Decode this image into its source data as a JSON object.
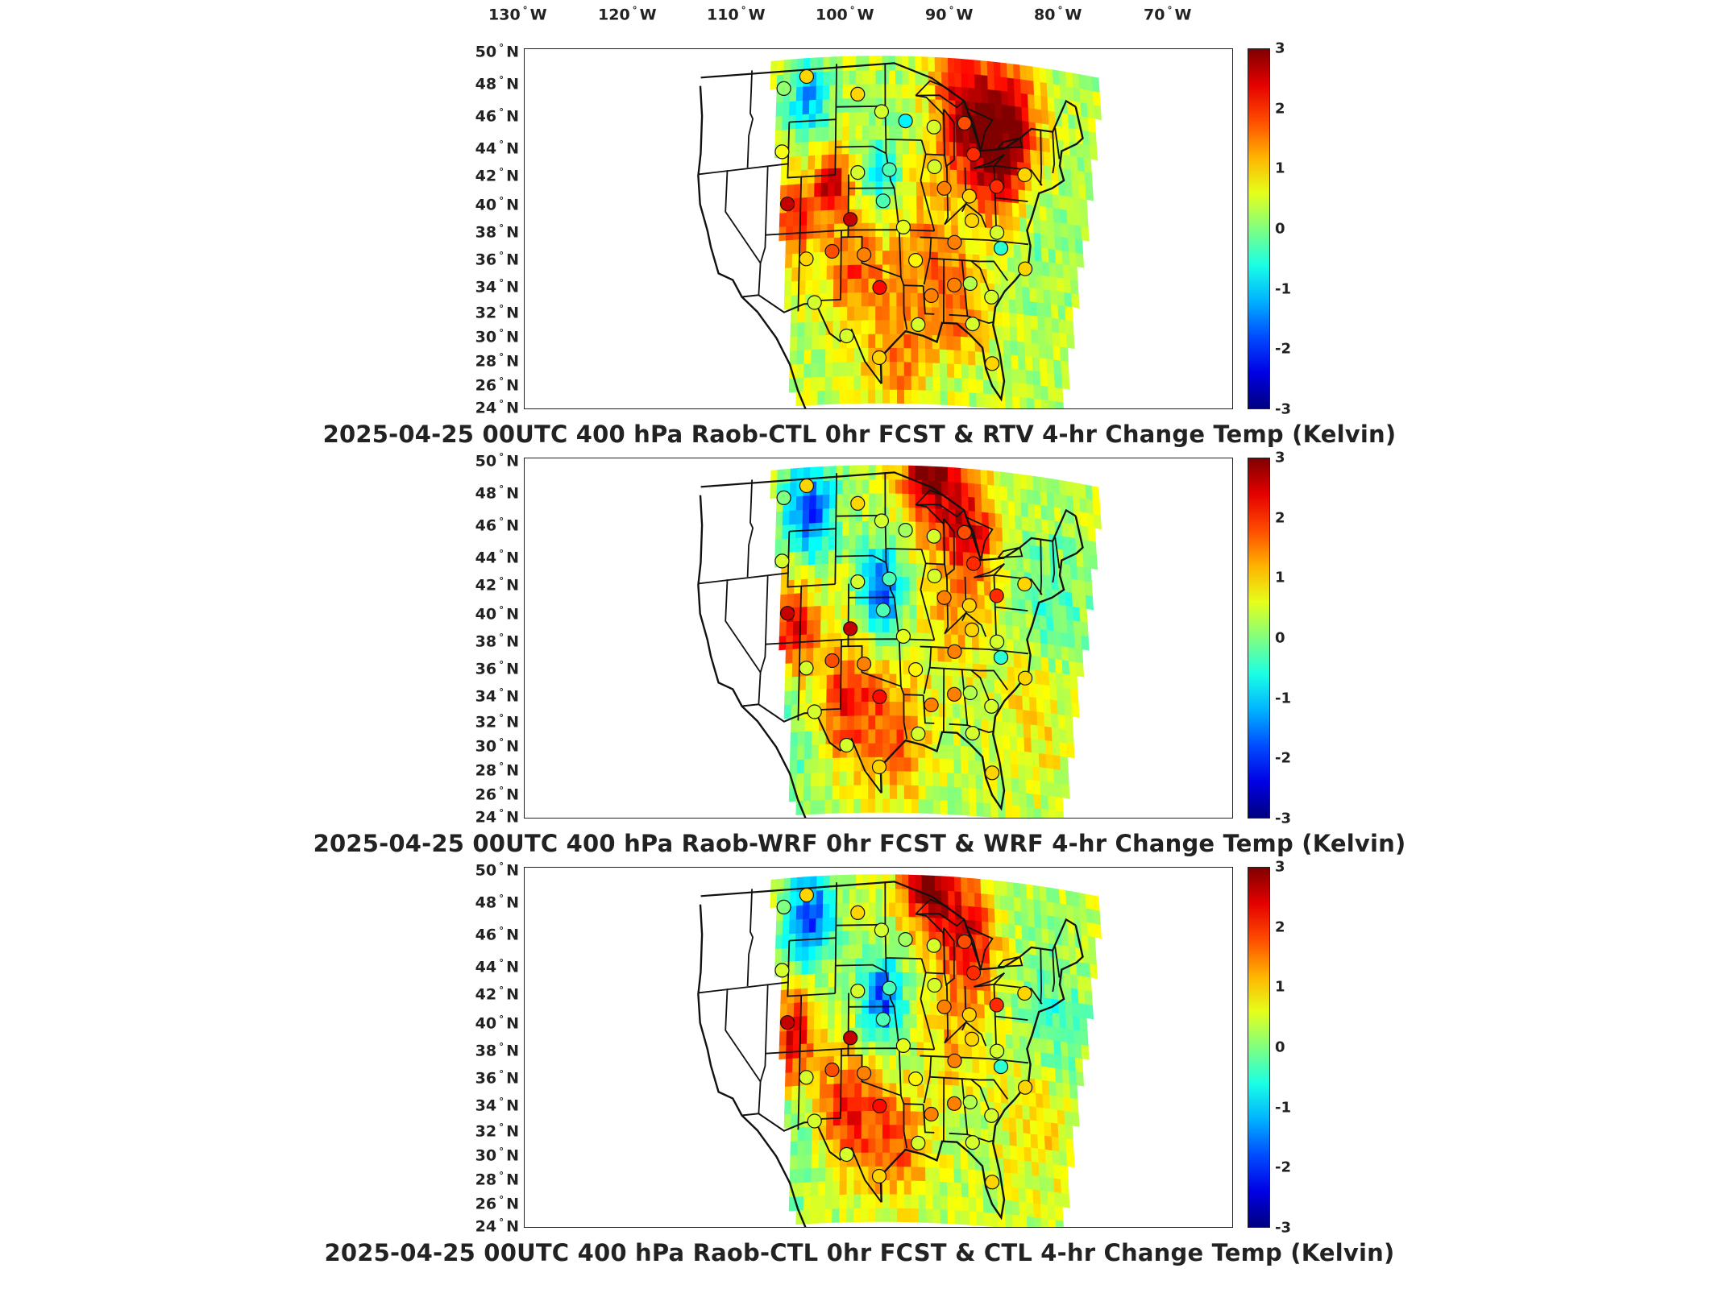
{
  "longitude_labels": [
    {
      "deg": "130",
      "hemi": "W"
    },
    {
      "deg": "120",
      "hemi": "W"
    },
    {
      "deg": "110",
      "hemi": "W"
    },
    {
      "deg": "100",
      "hemi": "W"
    },
    {
      "deg": "90",
      "hemi": "W"
    },
    {
      "deg": "80",
      "hemi": "W"
    },
    {
      "deg": "70",
      "hemi": "W"
    }
  ],
  "latitude_labels": [
    {
      "deg": "50",
      "hemi": "N"
    },
    {
      "deg": "48",
      "hemi": "N"
    },
    {
      "deg": "46",
      "hemi": "N"
    },
    {
      "deg": "44",
      "hemi": "N"
    },
    {
      "deg": "42",
      "hemi": "N"
    },
    {
      "deg": "40",
      "hemi": "N"
    },
    {
      "deg": "38",
      "hemi": "N"
    },
    {
      "deg": "36",
      "hemi": "N"
    },
    {
      "deg": "34",
      "hemi": "N"
    },
    {
      "deg": "32",
      "hemi": "N"
    },
    {
      "deg": "30",
      "hemi": "N"
    },
    {
      "deg": "28",
      "hemi": "N"
    },
    {
      "deg": "26",
      "hemi": "N"
    },
    {
      "deg": "24",
      "hemi": "N"
    }
  ],
  "colorbar": {
    "ticks": [
      "3",
      "2",
      "1",
      "0",
      "-1",
      "-2",
      "-3"
    ],
    "range": [
      -3,
      3
    ],
    "colormap": "jet"
  },
  "panels": [
    {
      "title": "2025-04-25 00UTC 400 hPa Raob-CTL 0hr FCST & RTV 4-hr Change Temp (Kelvin)"
    },
    {
      "title": "2025-04-25 00UTC 400 hPa Raob-WRF 0hr FCST & WRF 4-hr Change Temp (Kelvin)"
    },
    {
      "title": "2025-04-25 00UTC 400 hPa Raob-CTL 0hr FCST & CTL 4-hr Change Temp (Kelvin)"
    }
  ],
  "stations": [
    {
      "lon": -111.95,
      "lat": 47.46,
      "v": [
        0.1,
        0.0,
        0.0
      ]
    },
    {
      "lon": -108.53,
      "lat": 48.2,
      "v": [
        1.0,
        1.0,
        1.0
      ]
    },
    {
      "lon": -100.75,
      "lat": 46.77,
      "v": [
        1.0,
        1.0,
        1.0
      ]
    },
    {
      "lon": -97.15,
      "lat": 45.5,
      "v": [
        0.5,
        0.5,
        0.5
      ]
    },
    {
      "lon": -93.56,
      "lat": 44.85,
      "v": [
        -0.8,
        0.2,
        0.2
      ]
    },
    {
      "lon": -89.33,
      "lat": 44.48,
      "v": [
        0.5,
        0.5,
        0.5
      ]
    },
    {
      "lon": -84.72,
      "lat": 44.9,
      "v": [
        1.8,
        1.8,
        1.8
      ]
    },
    {
      "lon": -83.5,
      "lat": 42.7,
      "v": [
        2.0,
        2.0,
        2.0
      ]
    },
    {
      "lon": -111.95,
      "lat": 42.9,
      "v": [
        0.7,
        0.5,
        0.5
      ]
    },
    {
      "lon": -110.93,
      "lat": 39.1,
      "v": [
        2.6,
        2.6,
        2.6
      ]
    },
    {
      "lon": -100.68,
      "lat": 41.13,
      "v": [
        0.5,
        0.5,
        0.5
      ]
    },
    {
      "lon": -96.01,
      "lat": 41.32,
      "v": [
        -0.3,
        -0.3,
        -0.3
      ]
    },
    {
      "lon": -89.33,
      "lat": 41.62,
      "v": [
        0.5,
        0.5,
        0.5
      ]
    },
    {
      "lon": -87.95,
      "lat": 40.1,
      "v": [
        1.5,
        1.5,
        1.5
      ]
    },
    {
      "lon": -84.28,
      "lat": 39.65,
      "v": [
        1.0,
        1.0,
        1.0
      ]
    },
    {
      "lon": -80.22,
      "lat": 40.53,
      "v": [
        2.0,
        2.0,
        2.0
      ]
    },
    {
      "lon": -76.0,
      "lat": 41.6,
      "v": [
        1.0,
        1.0,
        1.0
      ]
    },
    {
      "lon": -101.7,
      "lat": 37.76,
      "v": [
        2.6,
        2.6,
        2.6
      ]
    },
    {
      "lon": -96.93,
      "lat": 39.07,
      "v": [
        -0.3,
        -0.3,
        -0.3
      ]
    },
    {
      "lon": -94.0,
      "lat": 37.2,
      "v": [
        0.6,
        0.6,
        0.6
      ]
    },
    {
      "lon": -86.6,
      "lat": 36.25,
      "v": [
        1.5,
        1.5,
        1.5
      ]
    },
    {
      "lon": -84.0,
      "lat": 37.9,
      "v": [
        1.0,
        1.0,
        1.0
      ]
    },
    {
      "lon": -80.4,
      "lat": 37.2,
      "v": [
        0.5,
        0.5,
        0.5
      ]
    },
    {
      "lon": -79.9,
      "lat": 36.1,
      "v": [
        -0.5,
        -0.5,
        -0.5
      ]
    },
    {
      "lon": -76.5,
      "lat": 34.8,
      "v": [
        1.0,
        1.0,
        1.0
      ]
    },
    {
      "lon": -108.0,
      "lat": 35.05,
      "v": [
        1.0,
        0.5,
        0.5
      ]
    },
    {
      "lon": -104.3,
      "lat": 35.5,
      "v": [
        1.8,
        1.8,
        1.8
      ]
    },
    {
      "lon": -99.7,
      "lat": 35.2,
      "v": [
        1.5,
        1.5,
        1.5
      ]
    },
    {
      "lon": -97.44,
      "lat": 32.83,
      "v": [
        2.2,
        2.2,
        2.2
      ]
    },
    {
      "lon": -92.27,
      "lat": 34.83,
      "v": [
        0.8,
        0.8,
        0.8
      ]
    },
    {
      "lon": -90.08,
      "lat": 32.32,
      "v": [
        1.5,
        1.5,
        1.5
      ]
    },
    {
      "lon": -86.78,
      "lat": 33.17,
      "v": [
        1.5,
        1.5,
        1.5
      ]
    },
    {
      "lon": -84.5,
      "lat": 33.35,
      "v": [
        0.3,
        0.3,
        0.3
      ]
    },
    {
      "lon": -81.5,
      "lat": 32.5,
      "v": [
        0.5,
        0.5,
        0.5
      ]
    },
    {
      "lon": -106.7,
      "lat": 31.87,
      "v": [
        0.5,
        0.5,
        0.5
      ]
    },
    {
      "lon": -102.1,
      "lat": 29.37,
      "v": [
        0.5,
        0.5,
        0.5
      ]
    },
    {
      "lon": -97.5,
      "lat": 27.77,
      "v": [
        1.0,
        1.0,
        1.0
      ]
    },
    {
      "lon": -92.0,
      "lat": 30.2,
      "v": [
        0.5,
        0.5,
        0.5
      ]
    },
    {
      "lon": -84.3,
      "lat": 30.45,
      "v": [
        0.5,
        0.5,
        0.5
      ]
    },
    {
      "lon": -81.7,
      "lat": 27.7,
      "v": [
        1.0,
        1.0,
        1.0
      ]
    }
  ]
}
